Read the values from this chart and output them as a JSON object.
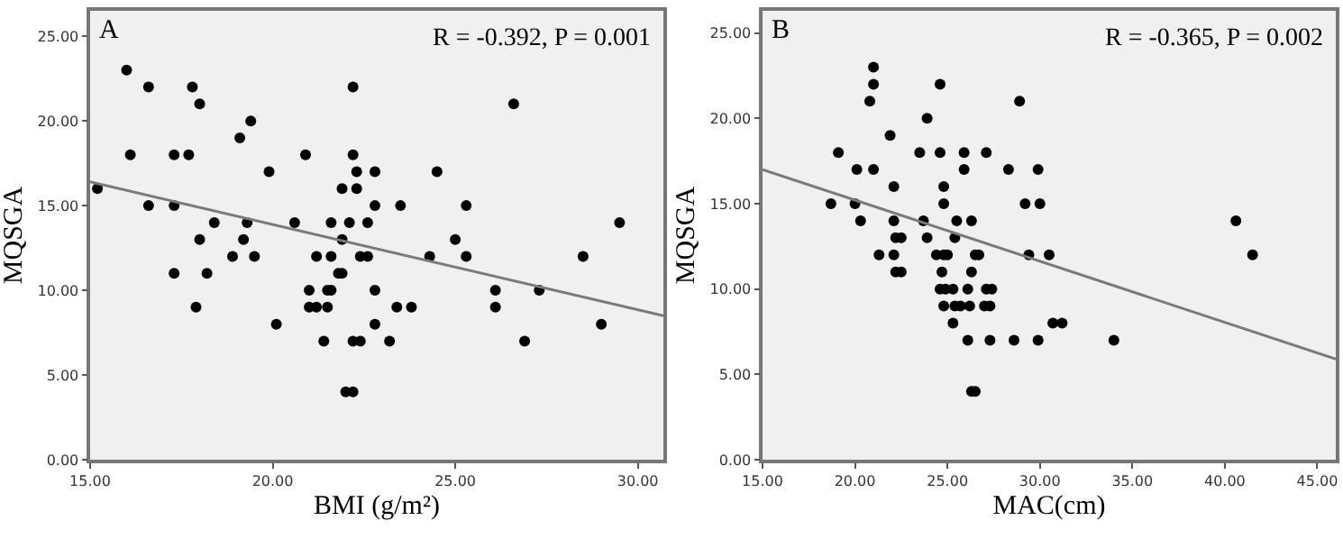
{
  "chart_data": [
    {
      "type": "scatter",
      "xlabel": "BMI (g/m²)",
      "ylabel": "MQSGA",
      "annotations": [
        "A",
        "R = -0.392, P = 0.001"
      ],
      "xlim": [
        15,
        30.7
      ],
      "ylim": [
        0,
        26.5
      ],
      "xticks": [
        {
          "value": 15,
          "label": "15.00"
        },
        {
          "value": 20,
          "label": "20.00"
        },
        {
          "value": 25,
          "label": "25.00"
        },
        {
          "value": 30,
          "label": "30.00"
        }
      ],
      "yticks": [
        {
          "value": 0,
          "label": "0.00"
        },
        {
          "value": 5,
          "label": "5.00"
        },
        {
          "value": 10,
          "label": "10.00"
        },
        {
          "value": 15,
          "label": "15.00"
        },
        {
          "value": 20,
          "label": "20.00"
        },
        {
          "value": 25,
          "label": "25.00"
        }
      ],
      "grid": false,
      "series": [
        {
          "type": "scatter",
          "marker": "circle",
          "color": "#000000",
          "x": [
            15.2,
            16.0,
            16.1,
            16.6,
            16.6,
            17.3,
            17.3,
            17.7,
            17.8,
            18.0,
            18.0,
            18.4,
            19.1,
            19.2,
            19.3,
            19.4,
            18.9,
            19.5,
            19.9,
            20.6,
            20.9,
            21.2,
            21.6,
            21.6,
            21.9,
            21.9,
            22.2,
            22.2,
            22.1,
            22.3,
            22.3,
            22.4,
            22.6,
            22.6,
            22.8,
            22.8,
            23.5,
            24.3,
            24.5,
            25.0,
            25.3,
            25.3,
            26.6,
            28.5,
            29.5,
            17.3,
            17.9,
            18.2,
            20.1,
            21.0,
            21.0,
            21.2,
            21.4,
            21.5,
            21.6,
            21.5,
            21.8,
            21.9,
            22.0,
            22.2,
            22.2,
            22.4,
            22.8,
            22.8,
            23.2,
            23.4,
            23.8,
            26.1,
            26.1,
            26.9,
            27.3,
            29.0
          ],
          "values": [
            16,
            23,
            18,
            22,
            15,
            18,
            15,
            18,
            22,
            21,
            13,
            14,
            19,
            13,
            14,
            20,
            12,
            12,
            17,
            14,
            18,
            12,
            12,
            14,
            16,
            13,
            22,
            18,
            14,
            16,
            17,
            12,
            12,
            14,
            17,
            15,
            15,
            12,
            17,
            13,
            15,
            12,
            21,
            12,
            14,
            11,
            9,
            11,
            8,
            10,
            9,
            9,
            7,
            10,
            10,
            9,
            11,
            11,
            4,
            4,
            7,
            7,
            10,
            8,
            7,
            9,
            9,
            10,
            9,
            7,
            10,
            8
          ]
        },
        {
          "type": "line",
          "marker": "none",
          "line_style": "solid",
          "color": "#7a7a7a",
          "x": [
            15,
            30.7
          ],
          "values": [
            16.4,
            8.5
          ]
        }
      ]
    },
    {
      "type": "scatter",
      "xlabel": "MAC(cm)",
      "ylabel": "MQSGA",
      "annotations": [
        "B",
        "R = -0.365, P = 0.002"
      ],
      "xlim": [
        15,
        46
      ],
      "ylim": [
        0,
        26.3
      ],
      "xticks": [
        {
          "value": 15,
          "label": "15.00"
        },
        {
          "value": 20,
          "label": "20.00"
        },
        {
          "value": 25,
          "label": "25.00"
        },
        {
          "value": 30,
          "label": "30.00"
        },
        {
          "value": 35,
          "label": "35.00"
        },
        {
          "value": 40,
          "label": "40.00"
        },
        {
          "value": 45,
          "label": "45.00"
        }
      ],
      "yticks": [
        {
          "value": 0,
          "label": "0.00"
        },
        {
          "value": 5,
          "label": "5.00"
        },
        {
          "value": 10,
          "label": "10.00"
        },
        {
          "value": 15,
          "label": "15.00"
        },
        {
          "value": 20,
          "label": "20.00"
        },
        {
          "value": 25,
          "label": "25.00"
        }
      ],
      "grid": false,
      "series": [
        {
          "type": "scatter",
          "marker": "circle",
          "color": "#000000",
          "x": [
            21.0,
            21.0,
            20.8,
            24.6,
            23.9,
            21.9,
            19.1,
            23.5,
            24.6,
            25.9,
            27.1,
            20.1,
            21.0,
            25.9,
            28.3,
            29.9,
            28.9,
            22.1,
            24.8,
            18.7,
            20.0,
            24.8,
            29.2,
            30.0,
            20.3,
            22.1,
            23.7,
            25.5,
            26.3,
            40.6,
            22.2,
            22.5,
            23.9,
            25.4,
            21.3,
            22.1,
            24.4,
            24.8,
            25.0,
            26.5,
            26.7,
            29.4,
            30.5,
            41.5,
            22.2,
            22.5,
            24.7,
            26.3,
            24.6,
            24.9,
            25.3,
            26.1,
            27.1,
            27.4,
            24.8,
            25.4,
            25.7,
            26.2,
            27.0,
            27.3,
            25.3,
            30.7,
            31.2,
            26.1,
            27.3,
            28.6,
            29.9,
            34.0,
            26.3,
            26.5
          ],
          "values": [
            23,
            22,
            21,
            22,
            20,
            19,
            18,
            18,
            18,
            18,
            18,
            17,
            17,
            17,
            17,
            17,
            21,
            16,
            16,
            15,
            15,
            15,
            15,
            15,
            14,
            14,
            14,
            14,
            14,
            14,
            13,
            13,
            13,
            13,
            12,
            12,
            12,
            12,
            12,
            12,
            12,
            12,
            12,
            12,
            11,
            11,
            11,
            11,
            10,
            10,
            10,
            10,
            10,
            10,
            9,
            9,
            9,
            9,
            9,
            9,
            8,
            8,
            8,
            7,
            7,
            7,
            7,
            7,
            4,
            4
          ]
        },
        {
          "type": "line",
          "marker": "none",
          "line_style": "solid",
          "color": "#7a7a7a",
          "x": [
            15,
            46
          ],
          "values": [
            17.0,
            5.9
          ]
        }
      ]
    }
  ]
}
